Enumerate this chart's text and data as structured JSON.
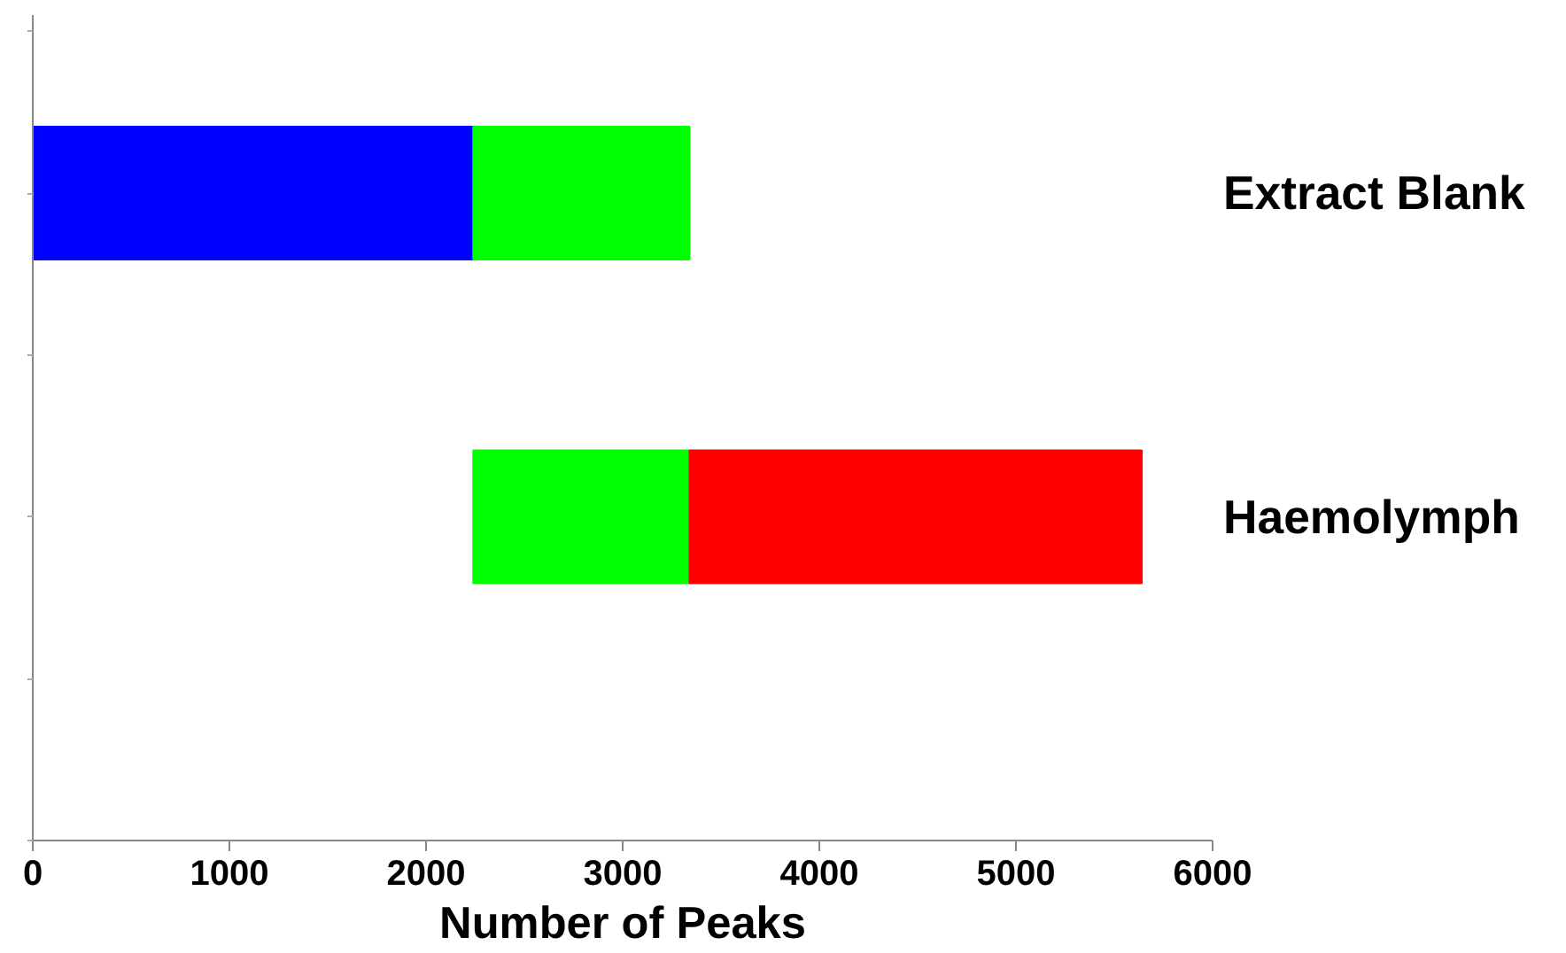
{
  "chart_data": {
    "type": "bar",
    "orientation": "horizontal",
    "categories": [
      "Extract Blank",
      "Haemolymph"
    ],
    "series": [
      {
        "color": "#0000ff",
        "values": [
          2240,
          null
        ],
        "base": [
          0,
          null
        ]
      },
      {
        "color": "#00ff00",
        "values": [
          1100,
          1100
        ],
        "base": [
          2240,
          2240
        ]
      },
      {
        "color": "#ff0000",
        "values": [
          null,
          2300
        ],
        "base": [
          null,
          3340
        ]
      }
    ],
    "xlabel": "Number of Peaks",
    "xlim": [
      0,
      6000
    ],
    "xticks": [
      0,
      1000,
      2000,
      3000,
      4000,
      5000,
      6000
    ],
    "grid": false
  }
}
